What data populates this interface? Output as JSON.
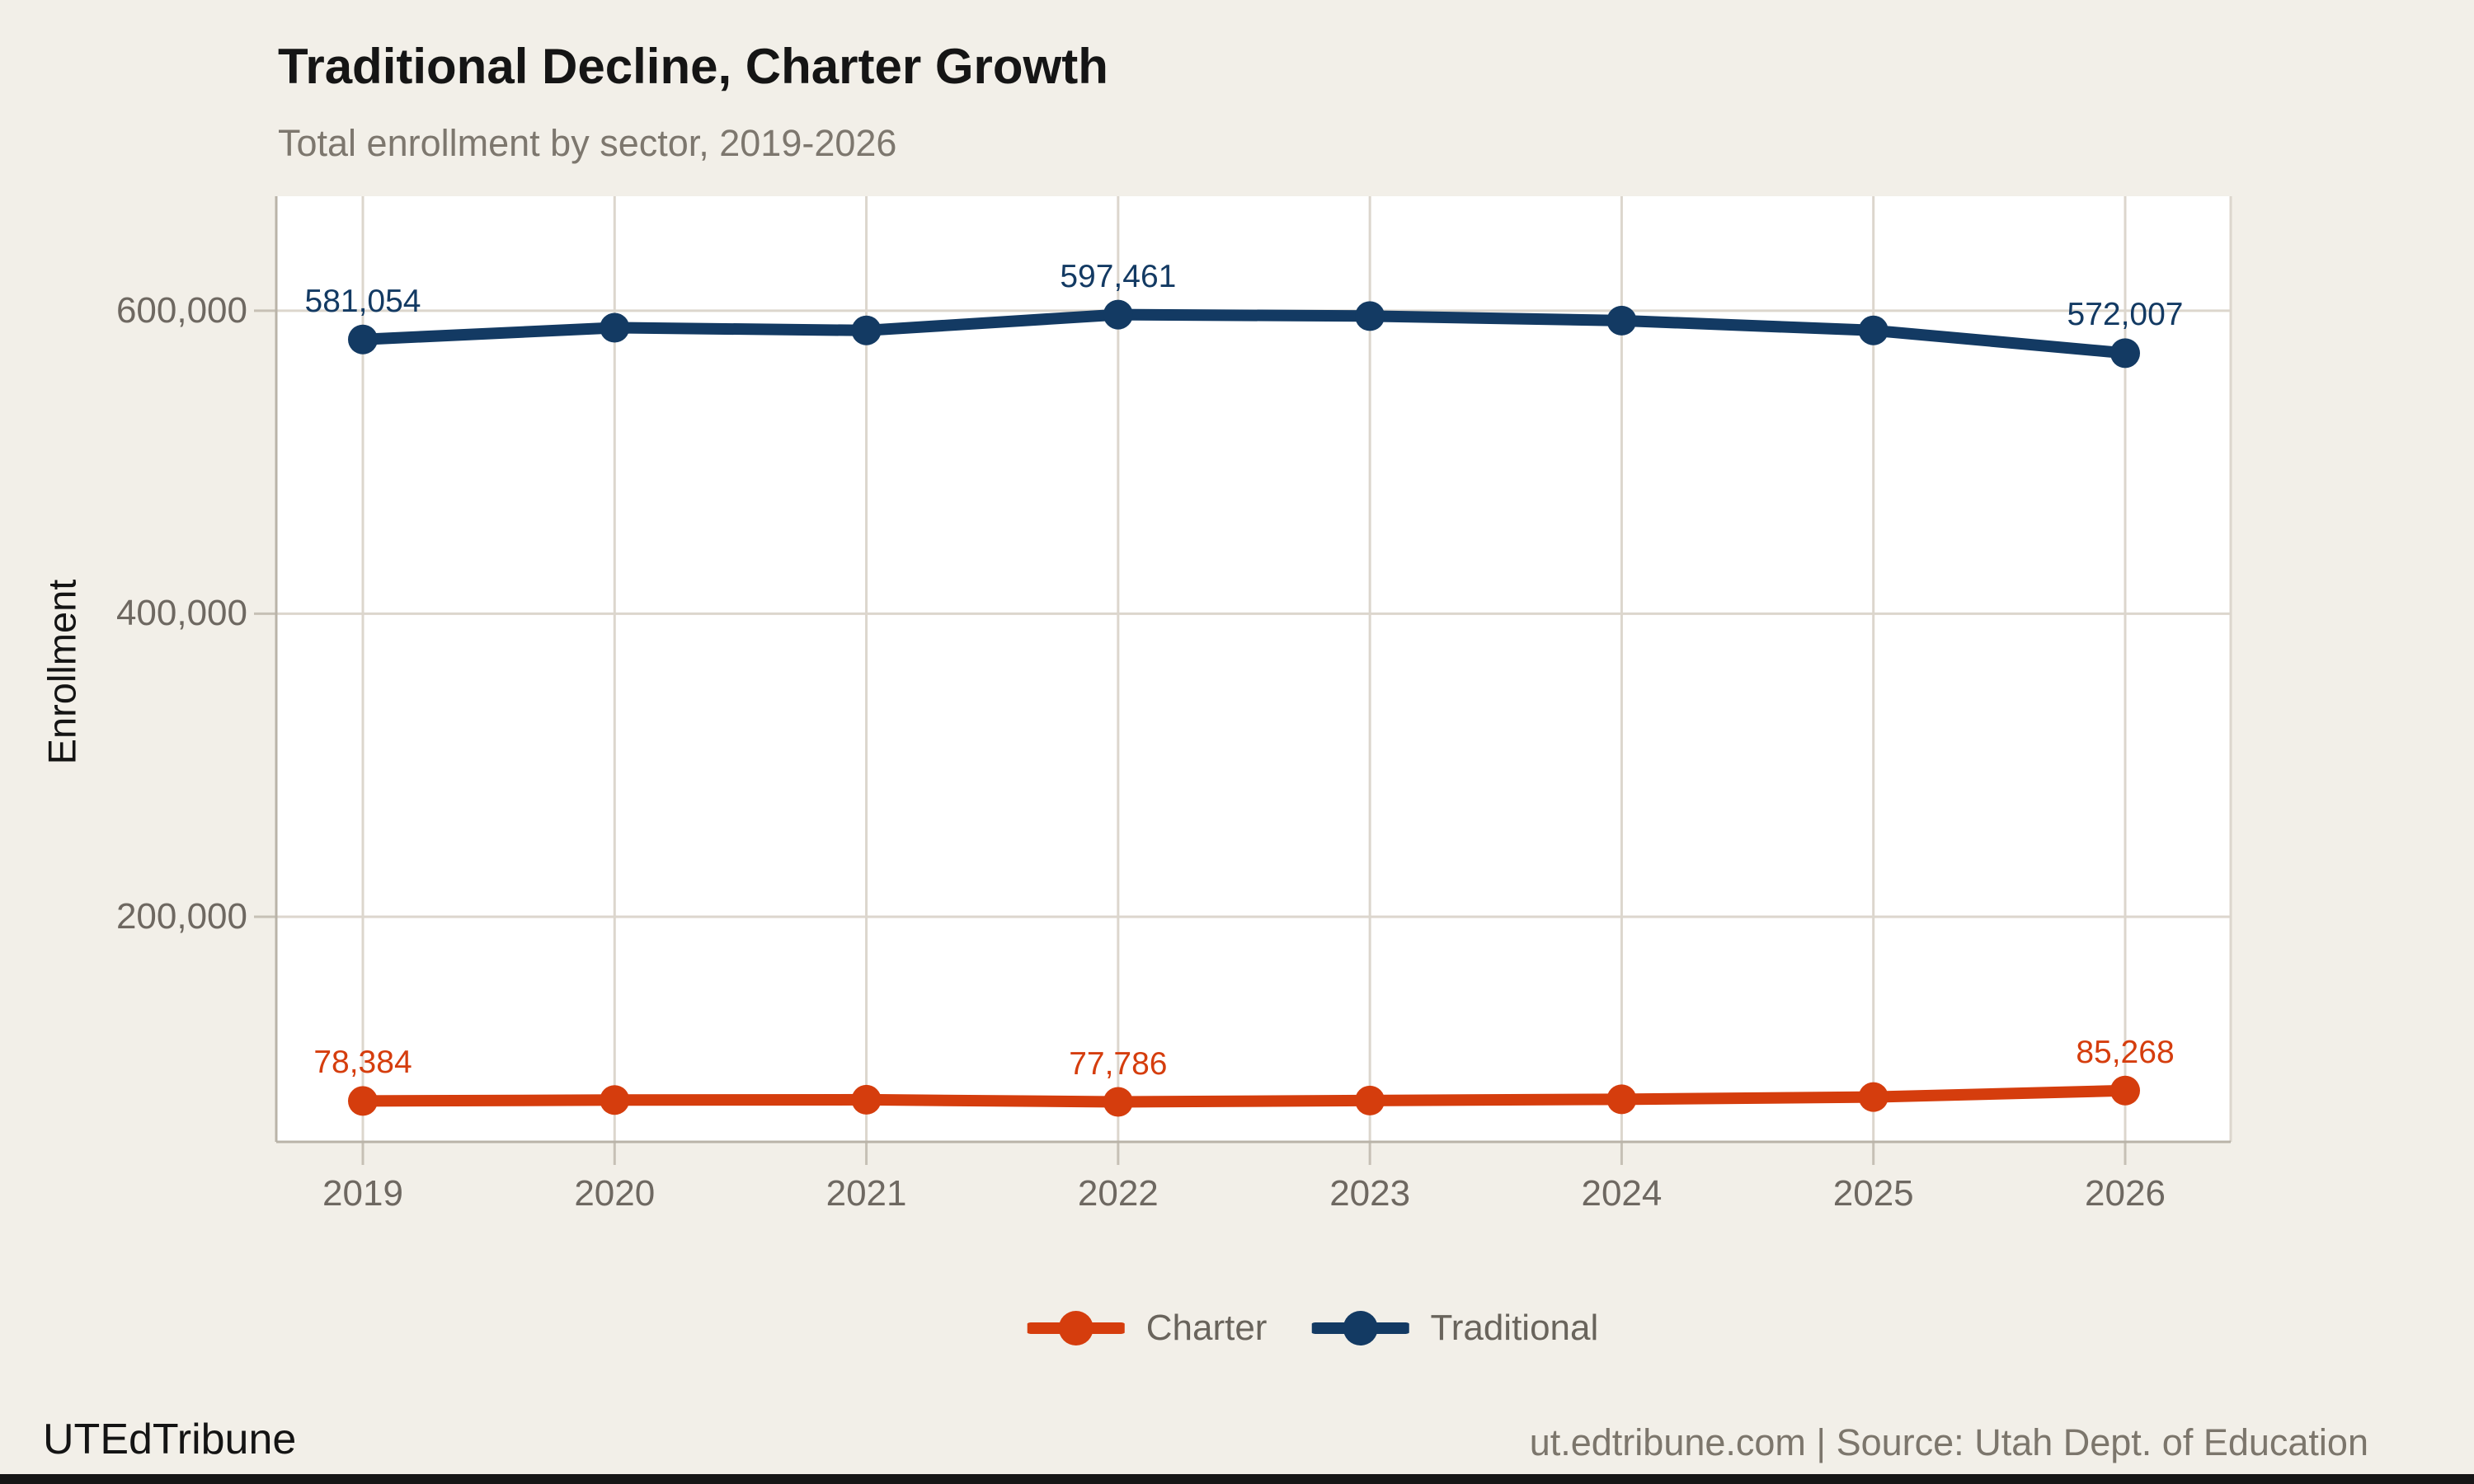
{
  "chart_data": {
    "type": "line",
    "title": "Traditional Decline, Charter Growth",
    "subtitle": "Total enrollment by sector, 2019-2026",
    "ylabel": "Enrollment",
    "xlabel": "",
    "categories": [
      "2019",
      "2020",
      "2021",
      "2022",
      "2023",
      "2024",
      "2025",
      "2026"
    ],
    "series": [
      {
        "name": "Charter",
        "color": "#d53d0d",
        "values": [
          78384,
          79000,
          79200,
          77786,
          78700,
          79500,
          81000,
          85268
        ]
      },
      {
        "name": "Traditional",
        "color": "#133a63",
        "values": [
          581054,
          588800,
          587000,
          597461,
          596500,
          593500,
          587000,
          572007
        ]
      }
    ],
    "annotations": [
      {
        "series": "Traditional",
        "year": "2019",
        "label": "581,054"
      },
      {
        "series": "Traditional",
        "year": "2022",
        "label": "597,461"
      },
      {
        "series": "Traditional",
        "year": "2026",
        "label": "572,007"
      },
      {
        "series": "Charter",
        "year": "2019",
        "label": "78,384"
      },
      {
        "series": "Charter",
        "year": "2022",
        "label": "77,786"
      },
      {
        "series": "Charter",
        "year": "2026",
        "label": "85,268"
      }
    ],
    "y_ticks": [
      {
        "value": 200000,
        "label": "200,000"
      },
      {
        "value": 400000,
        "label": "400,000"
      },
      {
        "value": 600000,
        "label": "600,000"
      }
    ],
    "ylim": [
      51400,
      675600
    ],
    "grid": true,
    "legend_position": "bottom",
    "colors": {
      "background": "#f2efe8",
      "plot_background": "#ffffff",
      "gridline": "#dcd6cd",
      "axis": "#b9b3a8",
      "tick_text": "#6e6861"
    }
  },
  "footer": {
    "brand": "UTEdTribune",
    "source": "ut.edtribune.com | Source: Utah Dept. of Education"
  }
}
